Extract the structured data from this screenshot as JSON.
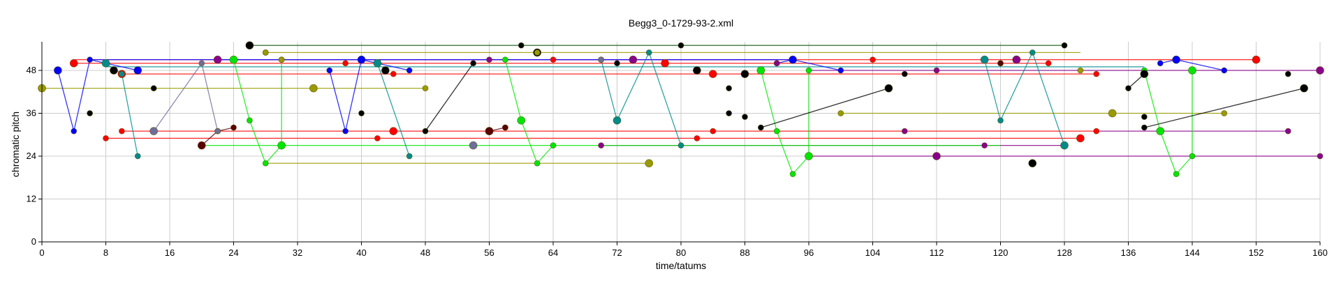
{
  "chart_data": {
    "type": "scatter",
    "title": "Begg3_0-1729-93-2.xml",
    "xlabel": "time/tatums",
    "ylabel": "chromatic pitch",
    "xlim": [
      0,
      160
    ],
    "ylim": [
      0,
      56
    ],
    "xticks": [
      0,
      8,
      16,
      24,
      32,
      40,
      48,
      56,
      64,
      72,
      80,
      88,
      96,
      104,
      112,
      120,
      128,
      136,
      144,
      152,
      160
    ],
    "yticks": [
      0,
      12,
      24,
      36,
      48
    ],
    "grid": true,
    "series": [
      {
        "color": "#0000ff",
        "points": [
          [
            2,
            48
          ],
          [
            4,
            31
          ],
          [
            6,
            51
          ],
          [
            12,
            48
          ],
          [
            36,
            48
          ],
          [
            38,
            31
          ],
          [
            40,
            51
          ],
          [
            46,
            48
          ],
          [
            92,
            50
          ],
          [
            94,
            51
          ],
          [
            100,
            48
          ],
          [
            140,
            50
          ],
          [
            142,
            51
          ],
          [
            148,
            48
          ]
        ],
        "links": [
          [
            0,
            1
          ],
          [
            1,
            2
          ],
          [
            2,
            3
          ],
          [
            4,
            5
          ],
          [
            5,
            6
          ],
          [
            6,
            7
          ],
          [
            8,
            9
          ],
          [
            9,
            10
          ],
          [
            11,
            12
          ],
          [
            12,
            13
          ]
        ]
      },
      {
        "color": "#ff0000",
        "points": [
          [
            4,
            50
          ],
          [
            8,
            29
          ],
          [
            10,
            31
          ],
          [
            10,
            47
          ],
          [
            38,
            50
          ],
          [
            42,
            29
          ],
          [
            44,
            31
          ],
          [
            44,
            47
          ],
          [
            64,
            51
          ],
          [
            78,
            50
          ],
          [
            82,
            29
          ],
          [
            84,
            31
          ],
          [
            84,
            47
          ],
          [
            104,
            51
          ],
          [
            126,
            50
          ],
          [
            130,
            29
          ],
          [
            132,
            31
          ],
          [
            132,
            47
          ],
          [
            152,
            51
          ]
        ],
        "links": []
      },
      {
        "color": "#008b8b",
        "points": [
          [
            8,
            50
          ],
          [
            10,
            47
          ],
          [
            12,
            24
          ],
          [
            42,
            50
          ],
          [
            46,
            24
          ],
          [
            70,
            51
          ],
          [
            72,
            34
          ],
          [
            76,
            53
          ],
          [
            80,
            27
          ],
          [
            118,
            51
          ],
          [
            120,
            34
          ],
          [
            124,
            53
          ],
          [
            128,
            27
          ]
        ],
        "links": [
          [
            0,
            1
          ],
          [
            1,
            2
          ],
          [
            3,
            4
          ],
          [
            5,
            6
          ],
          [
            6,
            7
          ],
          [
            7,
            8
          ],
          [
            9,
            10
          ],
          [
            10,
            11
          ],
          [
            11,
            12
          ]
        ]
      },
      {
        "color": "#00e600",
        "points": [
          [
            24,
            51
          ],
          [
            26,
            34
          ],
          [
            28,
            22
          ],
          [
            30,
            27
          ],
          [
            30,
            51
          ],
          [
            58,
            51
          ],
          [
            60,
            34
          ],
          [
            62,
            22
          ],
          [
            64,
            27
          ],
          [
            90,
            48
          ],
          [
            92,
            31
          ],
          [
            94,
            19
          ],
          [
            96,
            24
          ],
          [
            96,
            48
          ],
          [
            138,
            48
          ],
          [
            140,
            31
          ],
          [
            142,
            19
          ],
          [
            144,
            24
          ],
          [
            144,
            48
          ]
        ],
        "links": [
          [
            0,
            1
          ],
          [
            1,
            2
          ],
          [
            2,
            3
          ],
          [
            3,
            4
          ],
          [
            5,
            6
          ],
          [
            6,
            7
          ],
          [
            7,
            8
          ],
          [
            9,
            10
          ],
          [
            10,
            11
          ],
          [
            11,
            12
          ],
          [
            12,
            13
          ],
          [
            14,
            15
          ],
          [
            15,
            16
          ],
          [
            16,
            17
          ],
          [
            17,
            18
          ]
        ]
      },
      {
        "color": "#000000",
        "points": [
          [
            9,
            48
          ],
          [
            6,
            36
          ],
          [
            14,
            43
          ],
          [
            26,
            55
          ],
          [
            28,
            53
          ],
          [
            40,
            36
          ],
          [
            43,
            48
          ],
          [
            48,
            31
          ],
          [
            54,
            50
          ],
          [
            56,
            31
          ],
          [
            58,
            32
          ],
          [
            60,
            55
          ],
          [
            62,
            53
          ],
          [
            72,
            50
          ],
          [
            80,
            55
          ],
          [
            82,
            48
          ],
          [
            86,
            43
          ],
          [
            86,
            36
          ],
          [
            88,
            47
          ],
          [
            88,
            35
          ],
          [
            90,
            32
          ],
          [
            106,
            43
          ],
          [
            108,
            47
          ],
          [
            120,
            50
          ],
          [
            124,
            22
          ],
          [
            128,
            55
          ],
          [
            136,
            43
          ],
          [
            138,
            47
          ],
          [
            138,
            35
          ],
          [
            138,
            32
          ],
          [
            158,
            43
          ],
          [
            156,
            47
          ]
        ],
        "links": [
          [
            7,
            8
          ],
          [
            20,
            21
          ],
          [
            26,
            27
          ],
          [
            29,
            30
          ]
        ]
      },
      {
        "color": "#5a0000",
        "points": [
          [
            20,
            27
          ],
          [
            22,
            31
          ],
          [
            24,
            32
          ],
          [
            56,
            31
          ],
          [
            58,
            32
          ],
          [
            120,
            50
          ],
          [
            122,
            51
          ]
        ],
        "links": [
          [
            0,
            1
          ],
          [
            1,
            2
          ],
          [
            3,
            4
          ]
        ]
      },
      {
        "color": "#6e6e9a",
        "points": [
          [
            14,
            31
          ],
          [
            20,
            50
          ],
          [
            22,
            31
          ],
          [
            54,
            27
          ],
          [
            70,
            51
          ]
        ],
        "links": [
          [
            0,
            1
          ],
          [
            1,
            2
          ]
        ]
      },
      {
        "color": "#8b008b",
        "points": [
          [
            22,
            51
          ],
          [
            56,
            51
          ],
          [
            70,
            27
          ],
          [
            74,
            51
          ],
          [
            92,
            50
          ],
          [
            108,
            31
          ],
          [
            112,
            24
          ],
          [
            112,
            48
          ],
          [
            118,
            27
          ],
          [
            122,
            51
          ],
          [
            156,
            31
          ],
          [
            160,
            24
          ],
          [
            160,
            48
          ]
        ],
        "links": []
      },
      {
        "color": "#9a9a00",
        "points": [
          [
            0,
            43
          ],
          [
            28,
            53
          ],
          [
            30,
            51
          ],
          [
            34,
            43
          ],
          [
            48,
            43
          ],
          [
            62,
            53
          ],
          [
            76,
            22
          ],
          [
            100,
            36
          ],
          [
            130,
            48
          ],
          [
            134,
            36
          ],
          [
            148,
            36
          ]
        ],
        "links": []
      }
    ],
    "sustain_lines": [
      {
        "color": "#ff0000",
        "x0": 4,
        "x1": 152,
        "y": 51
      },
      {
        "color": "#ff0000",
        "x0": 4,
        "x1": 126,
        "y": 50
      },
      {
        "color": "#ff0000",
        "x0": 10,
        "x1": 132,
        "y": 47
      },
      {
        "color": "#ff0000",
        "x0": 10,
        "x1": 132,
        "y": 31
      },
      {
        "color": "#ff0000",
        "x0": 8,
        "x1": 130,
        "y": 29
      },
      {
        "color": "#8b008b",
        "x0": 22,
        "x1": 92,
        "y": 51
      },
      {
        "color": "#8b008b",
        "x0": 96,
        "x1": 160,
        "y": 48
      },
      {
        "color": "#8b008b",
        "x0": 96,
        "x1": 160,
        "y": 24
      },
      {
        "color": "#8b008b",
        "x0": 132,
        "x1": 156,
        "y": 31
      },
      {
        "color": "#8b008b",
        "x0": 70,
        "x1": 128,
        "y": 27
      },
      {
        "color": "#0000ff",
        "x0": 6,
        "x1": 94,
        "y": 51
      },
      {
        "color": "#00e600",
        "x0": 20,
        "x1": 120,
        "y": 27
      },
      {
        "color": "#9a9a00",
        "x0": 0,
        "x1": 48,
        "y": 43
      },
      {
        "color": "#9a9a00",
        "x0": 28,
        "x1": 76,
        "y": 22
      },
      {
        "color": "#9a9a00",
        "x0": 100,
        "x1": 148,
        "y": 36
      },
      {
        "color": "#9a9a00",
        "x0": 28,
        "x1": 130,
        "y": 53
      },
      {
        "color": "#008b8b",
        "x0": 8,
        "x1": 138,
        "y": 49
      },
      {
        "color": "#005000",
        "x0": 26,
        "x1": 128,
        "y": 55
      }
    ]
  }
}
